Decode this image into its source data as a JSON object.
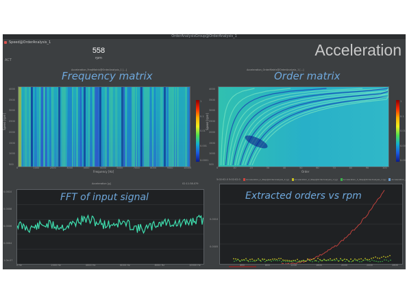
{
  "window": {
    "title": "OrderAnalysisGroup@OrderAnalysis_1"
  },
  "indicator": {
    "label": "Speed@OrderAnalysis_1",
    "value": "558",
    "unit": "rpm",
    "side_label": "ACT"
  },
  "dashboard_title": "Acceleration",
  "panels": {
    "freq": {
      "title": "Frequency matrix",
      "legend": "Acceleration_FreqMatrix@OrderAnalysis_1 [...]",
      "xlabel": "Frequency [Hz]",
      "ylabel": "Speed [rpm]",
      "xticks": [
        "0",
        "1000",
        "2000",
        "3000",
        "4000",
        "5000",
        "6000",
        "7000",
        "8000",
        "9000",
        "10000"
      ],
      "yticks": [
        "4000",
        "3500",
        "3000",
        "2500",
        "2000",
        "1500",
        "1000",
        "500"
      ],
      "cbar_ticks": [
        "1",
        "0.1",
        "0.01",
        "0.001",
        "0.0001"
      ]
    },
    "order": {
      "title": "Order matrix",
      "legend": "Acceleration_OrderMatrix@OrderAnalysis_1 [...]",
      "xlabel": "Order",
      "ylabel": "Speed [rpm]",
      "xticks": [
        "0",
        "10",
        "20",
        "30",
        "40",
        "50",
        "60",
        "70",
        "80",
        "90",
        "100"
      ],
      "yticks": [
        "4000",
        "3500",
        "3000",
        "2500",
        "2000",
        "1500",
        "1000",
        "500"
      ],
      "cbar_ticks": [
        "1",
        "0.1",
        "0.01",
        "0.001",
        "0.0001"
      ]
    },
    "fft": {
      "title": "FFT of input signal",
      "legend": "Acceleration [g]",
      "timestamp": "02:11:38.079",
      "yticks": [
        "0.0010",
        "0.0008",
        "0.0006",
        "0.0004",
        "1.0e-07"
      ],
      "xticks": [
        "0 Hz",
        "2000 Hz",
        "4000 Hz",
        "6000 Hz",
        "8000 Hz",
        "10000 Hz"
      ]
    },
    "orders": {
      "title": "Extracted orders vs rpm",
      "legend_prefix": "5:02:02.0  5:02:02.0",
      "legend_items": [
        "Acceleration_1_Step@OrderAnalysis_1 [g]",
        "Acceleration_2_Step@OrderAnalysis_1 [g]",
        "Acceleration_3_Step@OrderAnalysis_1 [g]",
        "Acceleration_4_Step@OrderAnalysis_1 [g]"
      ],
      "series_colors": [
        "#d0453f",
        "#c8c020",
        "#3bb34a",
        "#6aa0d8"
      ],
      "yticks": [
        "0.0010",
        "0.0005"
      ],
      "xticks": [
        "400",
        "800",
        "1200",
        "1600",
        "2000",
        "2400",
        "2800"
      ]
    }
  },
  "colors": {
    "title_blue": "#6fa8dc",
    "fft_line": "#3fe0b0",
    "background": "#3c3f41"
  }
}
